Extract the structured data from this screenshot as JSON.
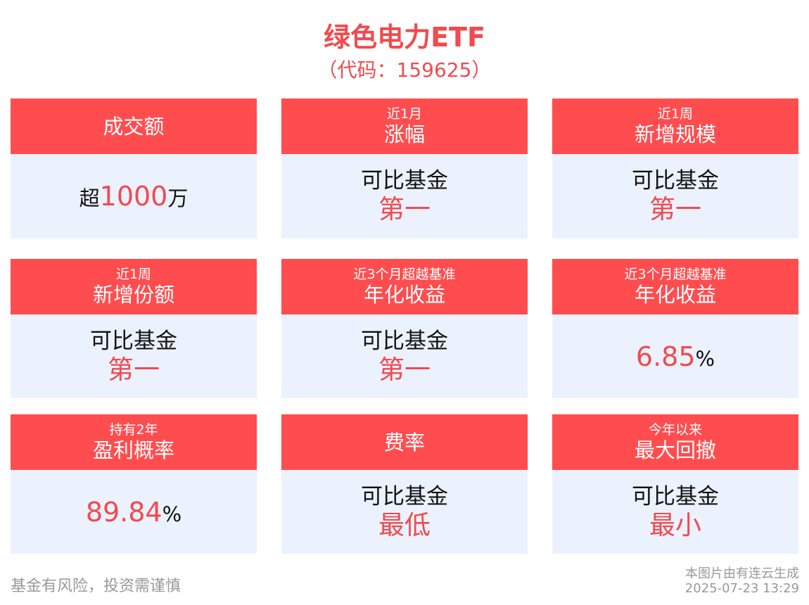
{
  "title": "绿色电力ETF",
  "code": "（代码：159625）",
  "cards": [
    {
      "sub": "",
      "title": "成交额",
      "prefix": "超",
      "value": "1000",
      "suffix": "万"
    },
    {
      "sub": "近1月",
      "title": "涨幅",
      "line1": "可比基金",
      "line2": "第一"
    },
    {
      "sub": "近1周",
      "title": "新增规模",
      "line1": "可比基金",
      "line2": "第一"
    },
    {
      "sub": "近1周",
      "title": "新增份额",
      "line1": "可比基金",
      "line2": "第一"
    },
    {
      "sub": "近3个月超越基准",
      "title": "年化收益",
      "line1": "可比基金",
      "line2": "第一"
    },
    {
      "sub": "近3个月超越基准",
      "title": "年化收益",
      "prefix": "",
      "value": "6.85",
      "suffix": "%"
    },
    {
      "sub": "持有2年",
      "title": "盈利概率",
      "prefix": "",
      "value": "89.84",
      "suffix": "%"
    },
    {
      "sub": "",
      "title": "费率",
      "line1": "可比基金",
      "line2": "最低"
    },
    {
      "sub": "今年以来",
      "title": "最大回撤",
      "line1": "可比基金",
      "line2": "最小"
    }
  ],
  "footer": {
    "disclaimer": "基金有风险，投资需谨慎",
    "generated_by": "本图片由有连云生成",
    "timestamp": "2025-07-23 13:29"
  }
}
